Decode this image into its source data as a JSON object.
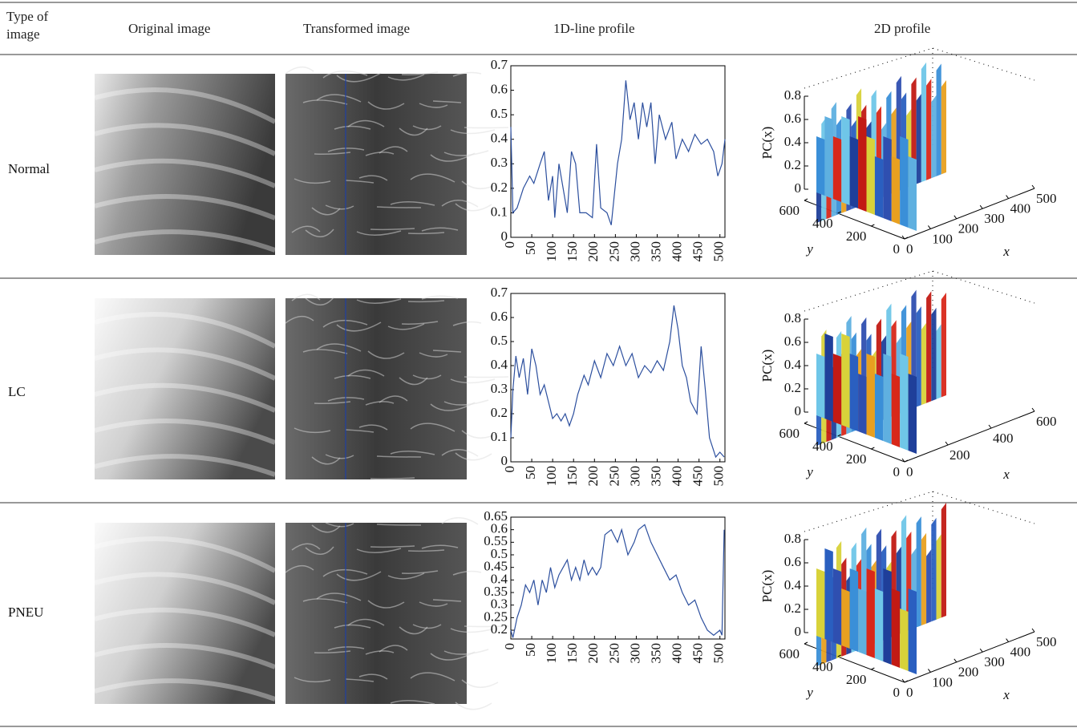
{
  "table": {
    "headers": [
      "Type of image",
      "Original image",
      "Transformed image",
      "1D-line profile",
      "2D profile"
    ],
    "rows": [
      {
        "type": "Normal",
        "line_profile": {
          "type": "line",
          "color": "#2c4f9e",
          "xlim": [
            0,
            512
          ],
          "ylim": [
            0,
            0.7
          ],
          "xticks": [
            0,
            50,
            100,
            150,
            200,
            250,
            300,
            350,
            400,
            450,
            500
          ],
          "yticks": [
            0,
            0.1,
            0.2,
            0.3,
            0.4,
            0.5,
            0.6,
            0.7
          ],
          "x": [
            0,
            5,
            15,
            30,
            45,
            55,
            70,
            80,
            90,
            100,
            105,
            115,
            125,
            135,
            145,
            155,
            165,
            180,
            195,
            205,
            215,
            230,
            240,
            255,
            265,
            275,
            285,
            295,
            305,
            315,
            325,
            335,
            345,
            355,
            370,
            385,
            395,
            410,
            425,
            440,
            455,
            470,
            485,
            495,
            505,
            512
          ],
          "values": [
            0.45,
            0.1,
            0.12,
            0.2,
            0.25,
            0.22,
            0.3,
            0.35,
            0.15,
            0.25,
            0.08,
            0.3,
            0.2,
            0.1,
            0.35,
            0.3,
            0.1,
            0.1,
            0.08,
            0.38,
            0.12,
            0.1,
            0.05,
            0.3,
            0.4,
            0.64,
            0.48,
            0.55,
            0.4,
            0.55,
            0.45,
            0.55,
            0.3,
            0.5,
            0.4,
            0.47,
            0.32,
            0.4,
            0.35,
            0.42,
            0.38,
            0.4,
            0.35,
            0.25,
            0.3,
            0.4
          ]
        },
        "surface_profile": {
          "zlabel": "PC(x)",
          "ylabel": "y",
          "xlabel": "x",
          "zticks": [
            0,
            0.2,
            0.4,
            0.6,
            0.8
          ],
          "yticks": [
            0,
            200,
            400,
            600
          ],
          "xticks": [
            0,
            100,
            200,
            300,
            400,
            500
          ]
        }
      },
      {
        "type": "LC",
        "line_profile": {
          "type": "line",
          "color": "#2c4f9e",
          "xlim": [
            0,
            512
          ],
          "ylim": [
            0,
            0.7
          ],
          "xticks": [
            0,
            50,
            100,
            150,
            200,
            250,
            300,
            350,
            400,
            450,
            500
          ],
          "yticks": [
            0,
            0.1,
            0.2,
            0.3,
            0.4,
            0.5,
            0.6,
            0.7
          ],
          "x": [
            0,
            5,
            12,
            20,
            30,
            40,
            50,
            60,
            70,
            80,
            90,
            100,
            110,
            120,
            130,
            140,
            150,
            160,
            175,
            185,
            200,
            215,
            230,
            245,
            260,
            275,
            290,
            305,
            320,
            335,
            350,
            365,
            380,
            390,
            400,
            410,
            420,
            430,
            445,
            455,
            465,
            475,
            490,
            500,
            510
          ],
          "values": [
            0.1,
            0.3,
            0.44,
            0.35,
            0.43,
            0.28,
            0.47,
            0.4,
            0.28,
            0.32,
            0.25,
            0.18,
            0.2,
            0.17,
            0.2,
            0.15,
            0.2,
            0.28,
            0.36,
            0.32,
            0.42,
            0.35,
            0.45,
            0.4,
            0.48,
            0.4,
            0.45,
            0.35,
            0.4,
            0.37,
            0.42,
            0.38,
            0.5,
            0.65,
            0.55,
            0.4,
            0.35,
            0.25,
            0.2,
            0.48,
            0.3,
            0.1,
            0.02,
            0.04,
            0.02
          ]
        },
        "surface_profile": {
          "zlabel": "PC(x)",
          "ylabel": "y",
          "xlabel": "x",
          "zticks": [
            0,
            0.2,
            0.4,
            0.6,
            0.8
          ],
          "yticks": [
            0,
            200,
            400,
            600
          ],
          "xticks": [
            0,
            200,
            400,
            600
          ]
        }
      },
      {
        "type": "PNEU",
        "line_profile": {
          "type": "line",
          "color": "#2c4f9e",
          "xlim": [
            0,
            512
          ],
          "ylim": [
            0.165,
            0.65
          ],
          "xticks": [
            0,
            50,
            100,
            150,
            200,
            250,
            300,
            350,
            400,
            450,
            500
          ],
          "yticks": [
            0.2,
            0.25,
            0.3,
            0.35,
            0.4,
            0.45,
            0.5,
            0.55,
            0.6,
            0.65
          ],
          "x": [
            0,
            5,
            15,
            25,
            35,
            45,
            55,
            65,
            75,
            85,
            95,
            105,
            115,
            125,
            135,
            145,
            155,
            165,
            175,
            185,
            195,
            205,
            215,
            225,
            240,
            255,
            265,
            280,
            295,
            305,
            320,
            335,
            350,
            365,
            380,
            395,
            410,
            425,
            440,
            455,
            470,
            485,
            500,
            505,
            510
          ],
          "values": [
            0.2,
            0.17,
            0.25,
            0.3,
            0.38,
            0.35,
            0.4,
            0.3,
            0.4,
            0.35,
            0.45,
            0.37,
            0.42,
            0.45,
            0.48,
            0.4,
            0.45,
            0.4,
            0.48,
            0.42,
            0.45,
            0.42,
            0.45,
            0.58,
            0.6,
            0.55,
            0.6,
            0.5,
            0.55,
            0.6,
            0.62,
            0.55,
            0.5,
            0.45,
            0.4,
            0.42,
            0.35,
            0.3,
            0.32,
            0.25,
            0.2,
            0.18,
            0.2,
            0.18,
            0.6
          ]
        },
        "surface_profile": {
          "zlabel": "PC(x)",
          "ylabel": "y",
          "xlabel": "x",
          "zticks": [
            0,
            0.2,
            0.4,
            0.6,
            0.8
          ],
          "yticks": [
            0,
            200,
            400,
            600
          ],
          "xticks": [
            0,
            100,
            200,
            300,
            400,
            500
          ]
        }
      }
    ]
  }
}
